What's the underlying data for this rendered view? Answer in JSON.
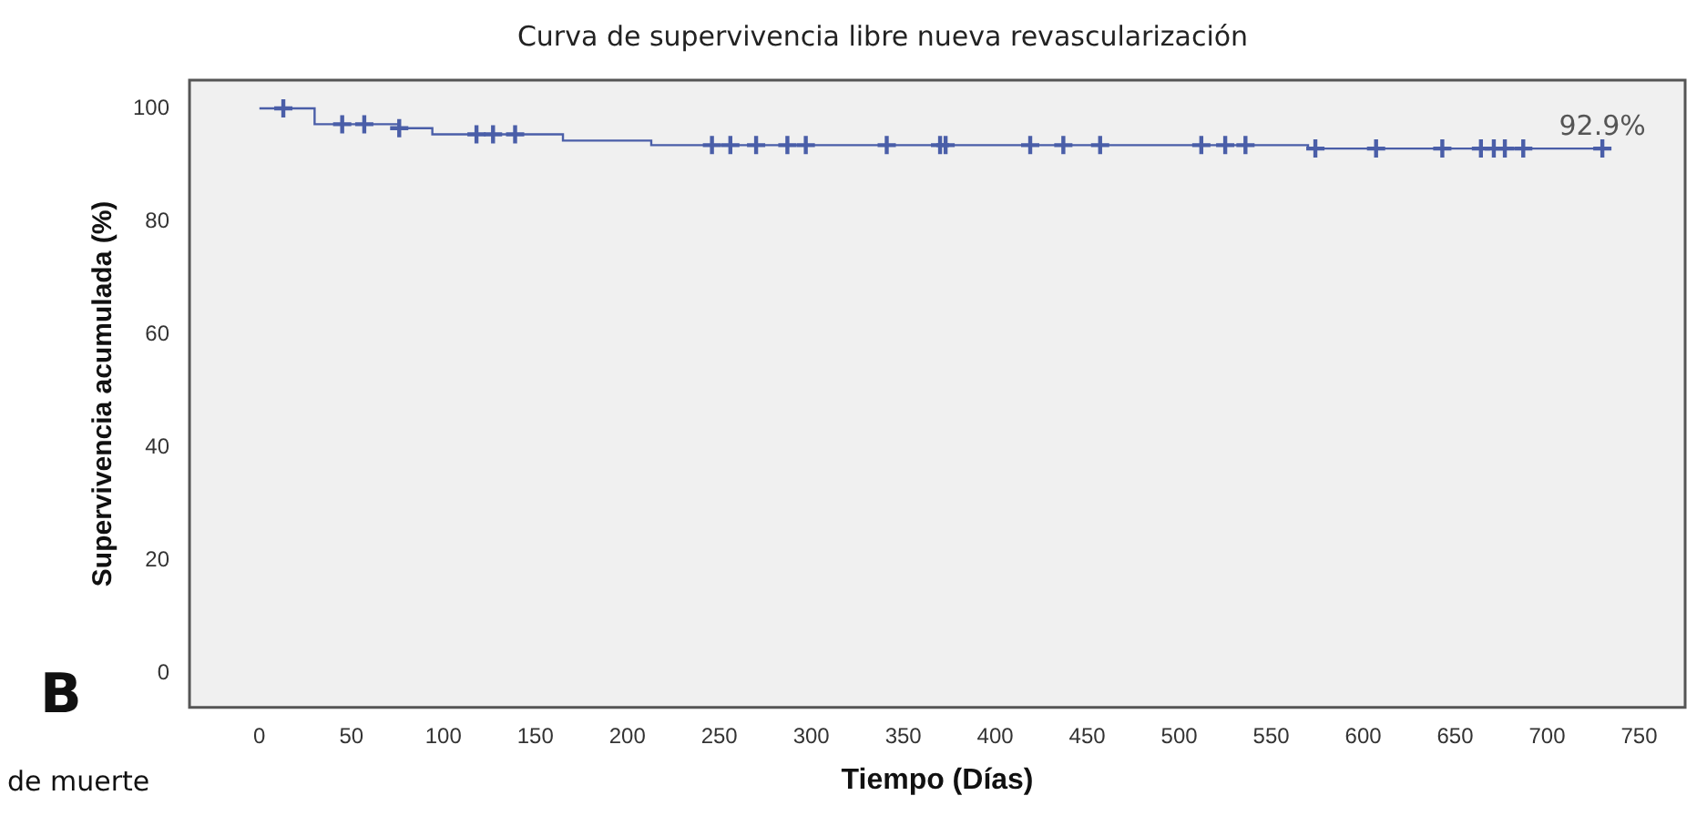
{
  "chart_data": {
    "type": "step",
    "title": "Curva de supervivencia libre nueva revascularización",
    "xlabel": "Tiempo (Días)",
    "ylabel": "Supervivencia acumulada (%)",
    "xlim": [
      -38,
      775
    ],
    "xticks": [
      0,
      50,
      100,
      150,
      200,
      250,
      300,
      350,
      400,
      450,
      500,
      550,
      600,
      650,
      700,
      750
    ],
    "ylim": [
      -6,
      105
    ],
    "yticks": [
      0,
      20,
      40,
      60,
      80,
      100
    ],
    "grid": false,
    "legend": false,
    "series": [
      {
        "color": "#4a5ea8",
        "marker": "none",
        "x": [
          0,
          30,
          76,
          94,
          165,
          213,
          570,
          730
        ],
        "values": [
          100,
          97.2,
          96.5,
          95.4,
          94.3,
          93.5,
          92.9,
          92.9
        ]
      },
      {
        "type": "scatter",
        "color": "#4a5ea8",
        "marker": "cross",
        "x": [
          13,
          45,
          57,
          76,
          118,
          127,
          139,
          246,
          256,
          270,
          287,
          297,
          341,
          370,
          373,
          419,
          437,
          457,
          512,
          525,
          536,
          574,
          607,
          643,
          664,
          671,
          677,
          687,
          730
        ],
        "values": [
          100,
          97.2,
          97.2,
          96.5,
          95.4,
          95.4,
          95.4,
          93.5,
          93.5,
          93.5,
          93.5,
          93.5,
          93.5,
          93.5,
          93.5,
          93.5,
          93.5,
          93.5,
          93.5,
          93.5,
          93.5,
          92.9,
          92.9,
          92.9,
          92.9,
          92.9,
          92.9,
          92.9,
          92.9
        ]
      }
    ],
    "annotations": [
      {
        "text": "92.9%",
        "x": 730,
        "y": 92.9
      },
      "B",
      "de muerte"
    ]
  }
}
